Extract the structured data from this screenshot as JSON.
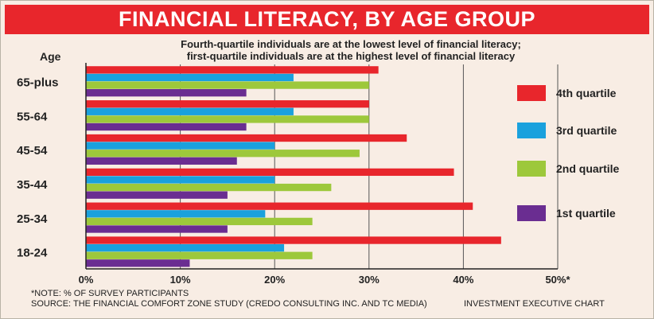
{
  "title": "FINANCIAL LITERACY, BY AGE GROUP",
  "subtitle_lines": [
    "Fourth-quartile individuals are at the lowest level of financial literacy;",
    "first-quartile individuals are at the highest level of financial literacy"
  ],
  "note": "*NOTE: % OF SURVEY PARTICIPANTS",
  "source": "SOURCE: THE FINANCIAL COMFORT ZONE STUDY (CREDO CONSULTING INC. AND TC MEDIA)",
  "credit": "INVESTMENT EXECUTIVE CHART",
  "chart_data": {
    "type": "bar",
    "orientation": "horizontal",
    "ylabel": "Age",
    "categories": [
      "65-plus",
      "55-64",
      "45-54",
      "35-44",
      "25-34",
      "18-24"
    ],
    "series": [
      {
        "name": "4th quartile",
        "color": "#e8262c",
        "values": [
          31,
          30,
          34,
          39,
          41,
          44
        ]
      },
      {
        "name": "3rd quartile",
        "color": "#1aa1dd",
        "values": [
          22,
          22,
          20,
          20,
          19,
          21
        ]
      },
      {
        "name": "2nd quartile",
        "color": "#9dc83b",
        "values": [
          30,
          30,
          29,
          26,
          24,
          24
        ]
      },
      {
        "name": "1st quartile",
        "color": "#6a2d91",
        "values": [
          17,
          17,
          16,
          15,
          15,
          11
        ]
      }
    ],
    "xlim": [
      0,
      50
    ],
    "x_ticks": [
      0,
      10,
      20,
      30,
      40,
      50
    ],
    "x_tick_labels": [
      "0%",
      "10%",
      "20%",
      "30%",
      "40%",
      "50%*"
    ],
    "grid": true,
    "legend_position": "right"
  }
}
